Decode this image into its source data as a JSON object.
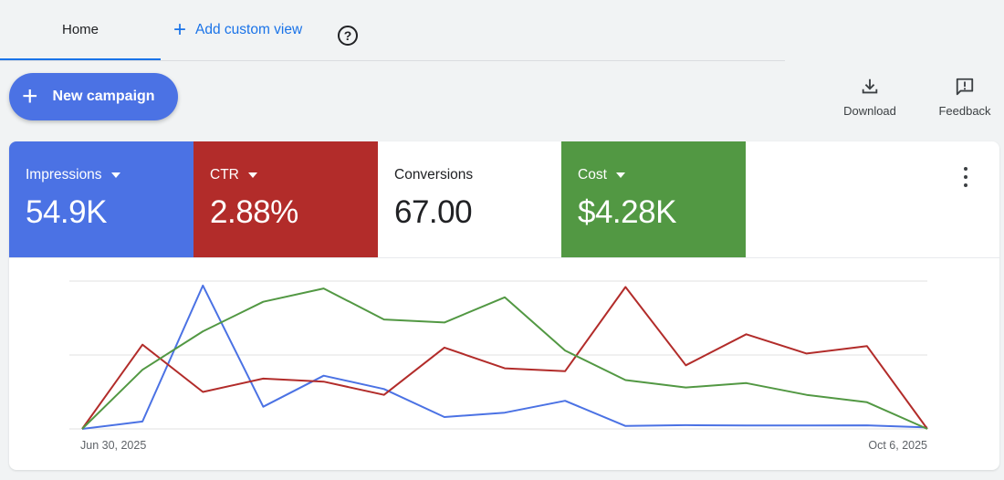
{
  "tabs": {
    "home": "Home",
    "add_custom_view": "Add custom view"
  },
  "toolbar": {
    "new_campaign": "New campaign",
    "download": "Download",
    "feedback": "Feedback"
  },
  "metrics": [
    {
      "label": "Impressions",
      "value": "54.9K",
      "color": "#4b72e4",
      "dropdown": true
    },
    {
      "label": "CTR",
      "value": "2.88%",
      "color": "#b22c2a",
      "dropdown": true
    },
    {
      "label": "Conversions",
      "value": "67.00",
      "color": "#ffffff",
      "dropdown": false
    },
    {
      "label": "Cost",
      "value": "$4.28K",
      "color": "#529843",
      "dropdown": true
    }
  ],
  "chart_data": {
    "type": "line",
    "x_tick_labels": [
      "Jun 30, 2025",
      "Oct 6, 2025"
    ],
    "x": [
      0,
      1,
      2,
      3,
      4,
      5,
      6,
      7,
      8,
      9,
      10,
      11,
      12,
      13,
      14
    ],
    "ylim": [
      0,
      100
    ],
    "grid": true,
    "series": [
      {
        "color": "#4b72e4",
        "values": [
          0,
          5,
          97,
          15,
          36,
          27,
          8,
          11,
          19,
          2,
          2.5,
          2.3,
          2.3,
          2.4,
          1
        ]
      },
      {
        "color": "#b22c2a",
        "values": [
          0,
          57,
          25,
          34,
          32,
          23,
          55,
          41,
          39,
          96,
          43,
          64,
          51,
          56,
          0
        ]
      },
      {
        "color": "#529843",
        "values": [
          0,
          40,
          66,
          86,
          95,
          74,
          72,
          89,
          53,
          33,
          28,
          31,
          23,
          18,
          0
        ]
      }
    ]
  }
}
